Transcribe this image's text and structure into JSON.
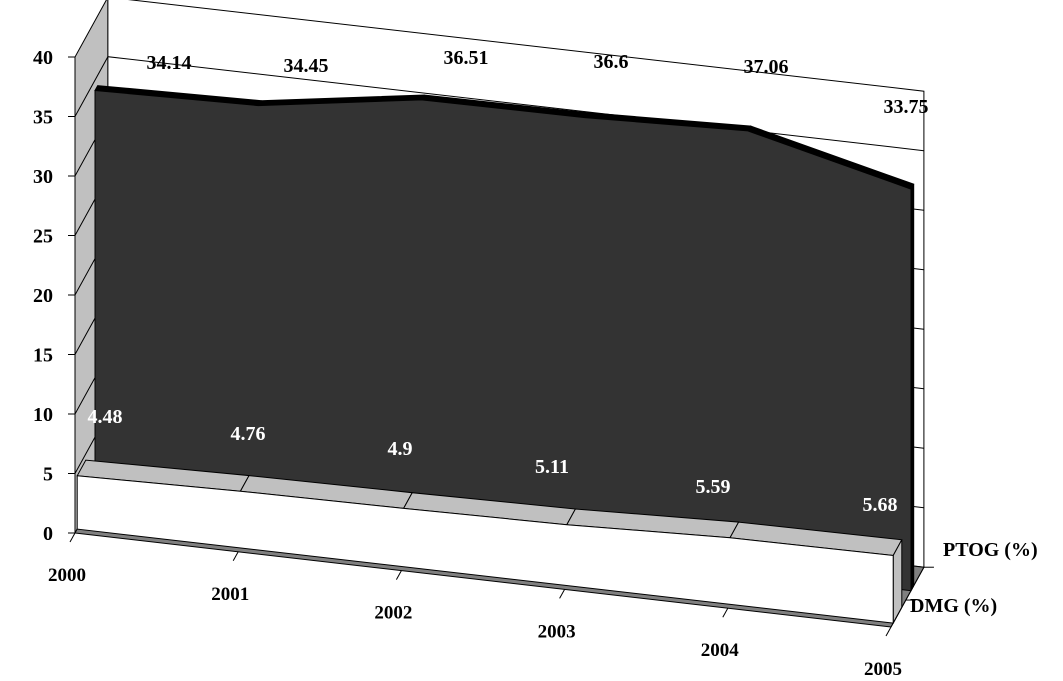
{
  "chart_data": {
    "type": "area",
    "three_d": true,
    "categories": [
      "2000",
      "2001",
      "2002",
      "2003",
      "2004",
      "2005"
    ],
    "ylim": [
      0,
      40
    ],
    "yticks": [
      "0",
      "5",
      "10",
      "15",
      "20",
      "25",
      "30",
      "35",
      "40"
    ],
    "grid": "horizontal on back wall",
    "series": [
      {
        "name": "DMG (%)",
        "values": [
          4.48,
          4.76,
          4.9,
          5.11,
          5.59,
          5.68
        ],
        "labels": [
          "4.48",
          "4.76",
          "4.9",
          "5.11",
          "5.59",
          "5.68"
        ],
        "color_top": "#c0c0c0",
        "color_front": "#ffffff",
        "label_color": "#ffffff"
      },
      {
        "name": "PTOG (%)",
        "values": [
          34.14,
          34.45,
          36.51,
          36.6,
          37.06,
          33.75
        ],
        "labels": [
          "34.14",
          "34.45",
          "36.51",
          "36.6",
          "37.06",
          "33.75"
        ],
        "color_front": "#333333",
        "color_top": "#000000",
        "label_color": "#000000"
      }
    ],
    "colors": {
      "back_wall": "#ffffff",
      "side_wall": "#c0c0c0",
      "floor": "#808080",
      "gridline": "#000000"
    }
  }
}
